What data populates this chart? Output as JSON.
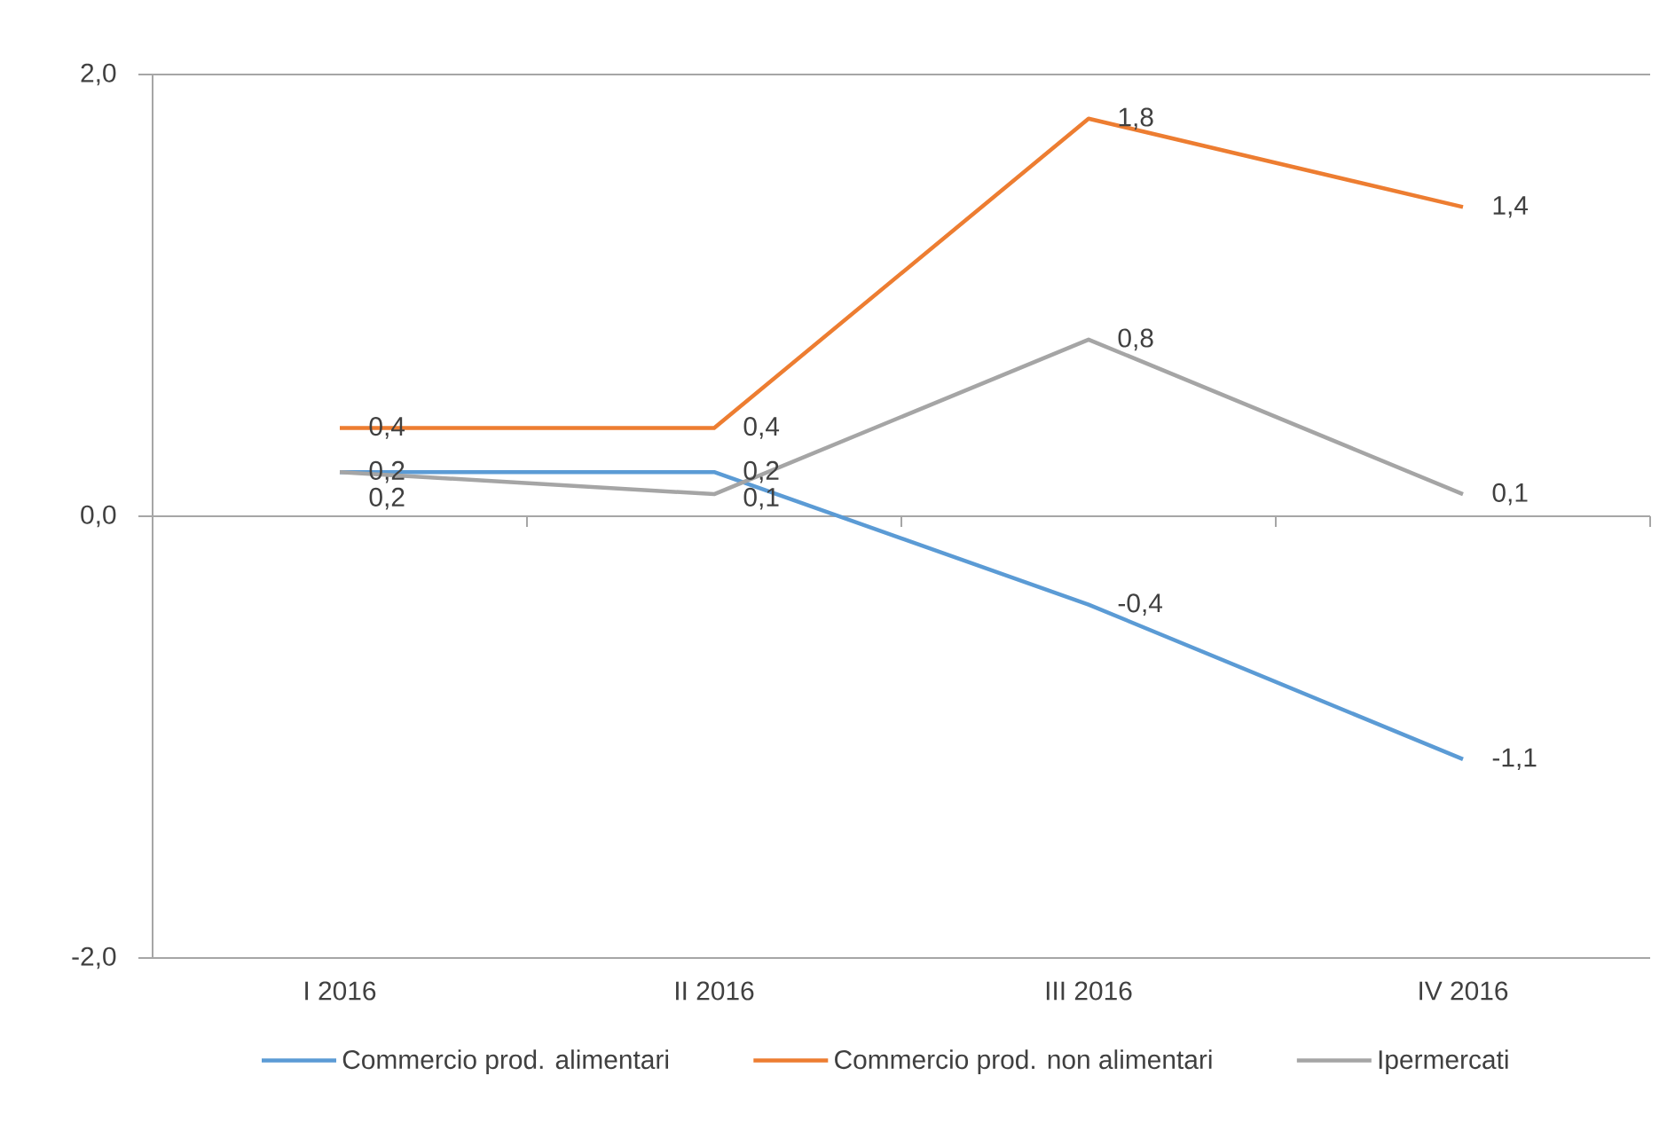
{
  "chart_data": {
    "type": "line",
    "categories": [
      "I 2016",
      "II 2016",
      "III 2016",
      "IV 2016"
    ],
    "series": [
      {
        "name": "Commercio prod. alimentari",
        "color": "#5b9bd5",
        "values": [
          0.2,
          0.2,
          -0.4,
          -1.1
        ],
        "value_labels": [
          "0,2",
          "0,2",
          "-0,4",
          "-1,1"
        ]
      },
      {
        "name": "Commercio prod. non alimentari",
        "color": "#ed7d31",
        "values": [
          0.4,
          0.4,
          1.8,
          1.4
        ],
        "value_labels": [
          "0,4",
          "0,4",
          "1,8",
          "1,4"
        ]
      },
      {
        "name": "Ipermercati",
        "color": "#a5a5a5",
        "values": [
          0.2,
          0.1,
          0.8,
          0.1
        ],
        "value_labels": [
          "0,2",
          "0,1",
          "0,8",
          "0,1"
        ]
      }
    ],
    "ylim": [
      -2,
      2
    ],
    "yticks": [
      {
        "value": -2,
        "label": "-2,0"
      },
      {
        "value": 0,
        "label": "0,0"
      },
      {
        "value": 2,
        "label": "2,0"
      }
    ],
    "grid": "y",
    "legend": "bottom"
  }
}
